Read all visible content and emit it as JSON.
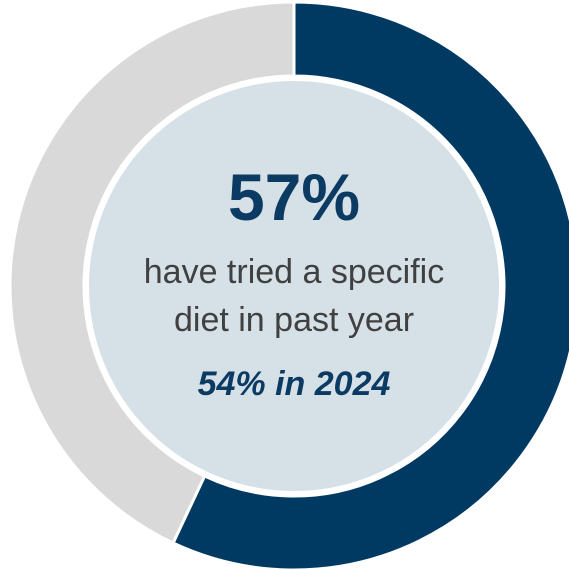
{
  "chart_data": {
    "type": "pie",
    "slices": [
      {
        "value": 57,
        "color": "#003a63"
      },
      {
        "value": 43,
        "color": "#d9d9d9"
      }
    ],
    "center": {
      "value_label": "57%",
      "description_line1": "have tried a specific",
      "description_line2": "diet in past year",
      "comparison": "54% in 2024"
    },
    "center_color": "#d5e0e7"
  }
}
